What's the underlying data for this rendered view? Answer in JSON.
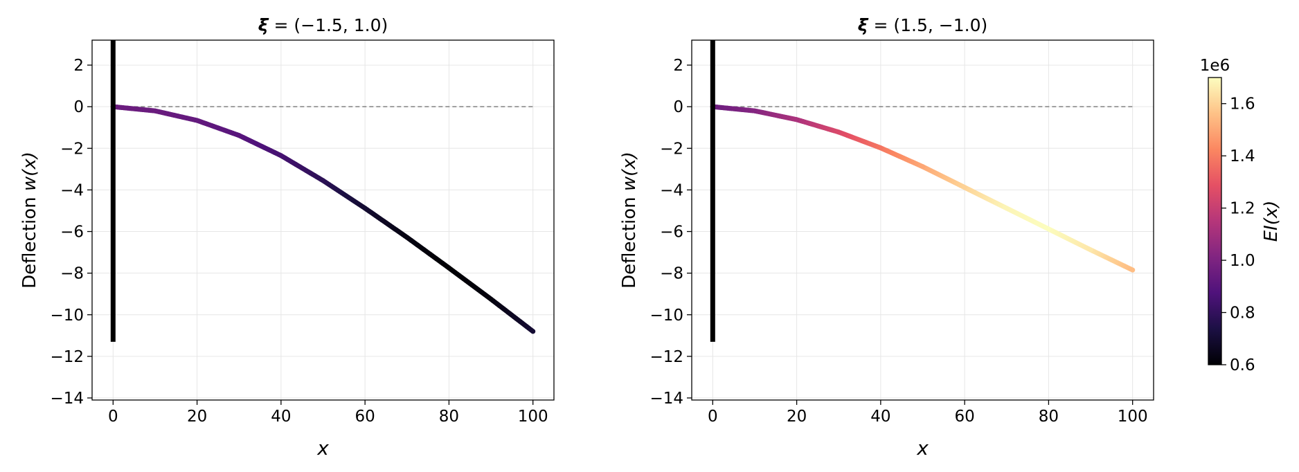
{
  "chart_data": [
    {
      "type": "line",
      "title": "ξ = (−1.5,  1.0)",
      "title_symbol": "ξ",
      "title_values": "= (−1.5,  1.0)",
      "xlabel": "x",
      "ylabel_prefix": "Deflection ",
      "ylabel_math": "w(x)",
      "xlim": [
        -5,
        105
      ],
      "ylim": [
        -14.1,
        3.2
      ],
      "xticks": [
        0,
        20,
        40,
        60,
        80,
        100
      ],
      "yticks": [
        2,
        0,
        -2,
        -4,
        -6,
        -8,
        -10,
        -12,
        -14
      ],
      "grid": true,
      "reference_line_y": 0,
      "support": {
        "x": 0,
        "y_top": 3.2,
        "y_bottom": -11.3
      },
      "series": [
        {
          "x": [
            0,
            10,
            20,
            30,
            40,
            50,
            60,
            70,
            80,
            90,
            100
          ],
          "y": [
            0.0,
            -0.2,
            -0.66,
            -1.38,
            -2.35,
            -3.55,
            -4.88,
            -6.28,
            -7.75,
            -9.25,
            -10.8
          ],
          "EI": [
            0.95,
            0.95,
            0.93,
            0.9,
            0.85,
            0.78,
            0.7,
            0.63,
            0.6,
            0.62,
            0.7
          ]
        }
      ]
    },
    {
      "type": "line",
      "title": "ξ = (1.5,  −1.0)",
      "title_symbol": "ξ",
      "title_values": "= (1.5,  −1.0)",
      "xlabel": "x",
      "ylabel_prefix": "Deflection ",
      "ylabel_math": "w(x)",
      "xlim": [
        -5,
        105
      ],
      "ylim": [
        -14.1,
        3.2
      ],
      "xticks": [
        0,
        20,
        40,
        60,
        80,
        100
      ],
      "yticks": [
        2,
        0,
        -2,
        -4,
        -6,
        -8,
        -10,
        -12,
        -14
      ],
      "grid": true,
      "reference_line_y": 0,
      "support": {
        "x": 0,
        "y_top": 3.2,
        "y_bottom": -11.3
      },
      "series": [
        {
          "x": [
            0,
            10,
            20,
            30,
            40,
            50,
            60,
            70,
            80,
            90,
            100
          ],
          "y": [
            0.0,
            -0.2,
            -0.62,
            -1.22,
            -1.98,
            -2.88,
            -3.88,
            -4.88,
            -5.88,
            -6.88,
            -7.85
          ],
          "EI": [
            0.95,
            1.02,
            1.12,
            1.25,
            1.38,
            1.5,
            1.6,
            1.68,
            1.7,
            1.65,
            1.55
          ]
        }
      ]
    }
  ],
  "colorbar": {
    "label": "EI(x)",
    "multiplier": "1e6",
    "range": [
      0.6,
      1.7
    ],
    "ticks": [
      "0.6",
      "0.8",
      "1.0",
      "1.2",
      "1.4",
      "1.6"
    ],
    "tick_values": [
      0.6,
      0.8,
      1.0,
      1.2,
      1.4,
      1.6
    ],
    "colormap": [
      "#000004",
      "#1c1044",
      "#4f127b",
      "#812581",
      "#b5367a",
      "#e55064",
      "#fb8761",
      "#fec287",
      "#fcfdbf"
    ]
  }
}
